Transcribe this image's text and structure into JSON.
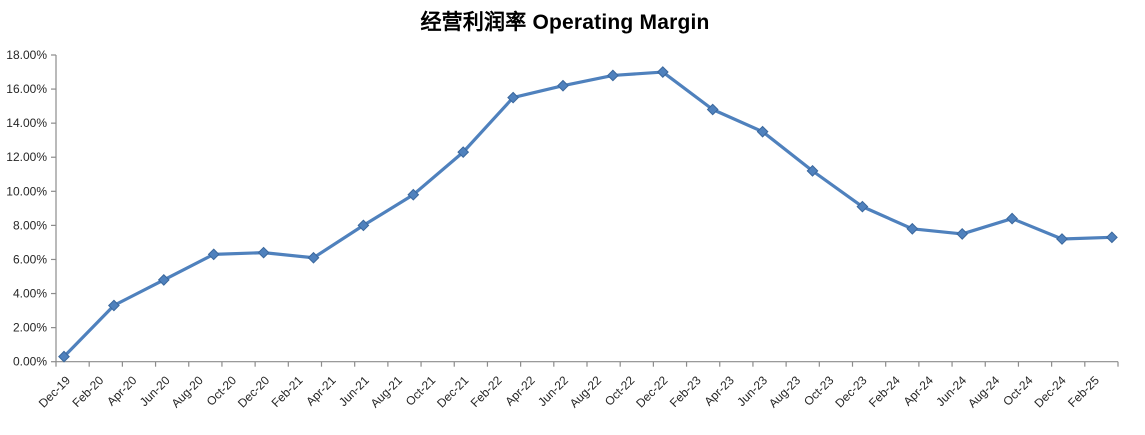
{
  "title": "经营利润率 Operating Margin",
  "chart_data": {
    "type": "line",
    "title": "经营利润率 Operating Margin",
    "series": [
      {
        "name": "Operating Margin",
        "x": [
          "Dec-19",
          "Mar-20",
          "Jun-20",
          "Sep-20",
          "Dec-20",
          "Mar-21",
          "Jun-21",
          "Sep-21",
          "Dec-21",
          "Mar-22",
          "Jun-22",
          "Sep-22",
          "Dec-22",
          "Mar-23",
          "Jun-23",
          "Sep-23",
          "Dec-23",
          "Mar-24",
          "Jun-24",
          "Sep-24",
          "Dec-24",
          "Mar-25"
        ],
        "values": [
          0.3,
          3.3,
          4.8,
          6.3,
          6.4,
          6.1,
          8.0,
          9.8,
          12.3,
          15.5,
          16.2,
          16.8,
          17.0,
          14.8,
          13.5,
          11.2,
          9.1,
          7.8,
          7.5,
          8.4,
          7.2,
          7.3
        ]
      }
    ],
    "x_tick_labels": [
      "Dec-19",
      "Feb-20",
      "Apr-20",
      "Jun-20",
      "Aug-20",
      "Oct-20",
      "Dec-20",
      "Feb-21",
      "Apr-21",
      "Jun-21",
      "Aug-21",
      "Oct-21",
      "Dec-21",
      "Feb-22",
      "Apr-22",
      "Jun-22",
      "Aug-22",
      "Oct-22",
      "Dec-22",
      "Feb-23",
      "Apr-23",
      "Jun-23",
      "Aug-23",
      "Oct-23",
      "Dec-23",
      "Feb-24",
      "Apr-24",
      "Jun-24",
      "Aug-24",
      "Oct-24",
      "Dec-24",
      "Feb-25"
    ],
    "y_tick_labels": [
      "18.00%",
      "16.00%",
      "14.00%",
      "12.00%",
      "10.00%",
      "8.00%",
      "6.00%",
      "4.00%",
      "2.00%",
      "0.00%"
    ],
    "ylim": [
      0,
      18
    ],
    "y_tick_step": 2,
    "grid": false,
    "legend": false,
    "marker": "diamond",
    "line_color": "#4F81BD",
    "marker_edge_color": "#3A679C",
    "axis_color": "#8C8C8C",
    "text_color": "#262626",
    "background_color": "#FFFFFF"
  }
}
